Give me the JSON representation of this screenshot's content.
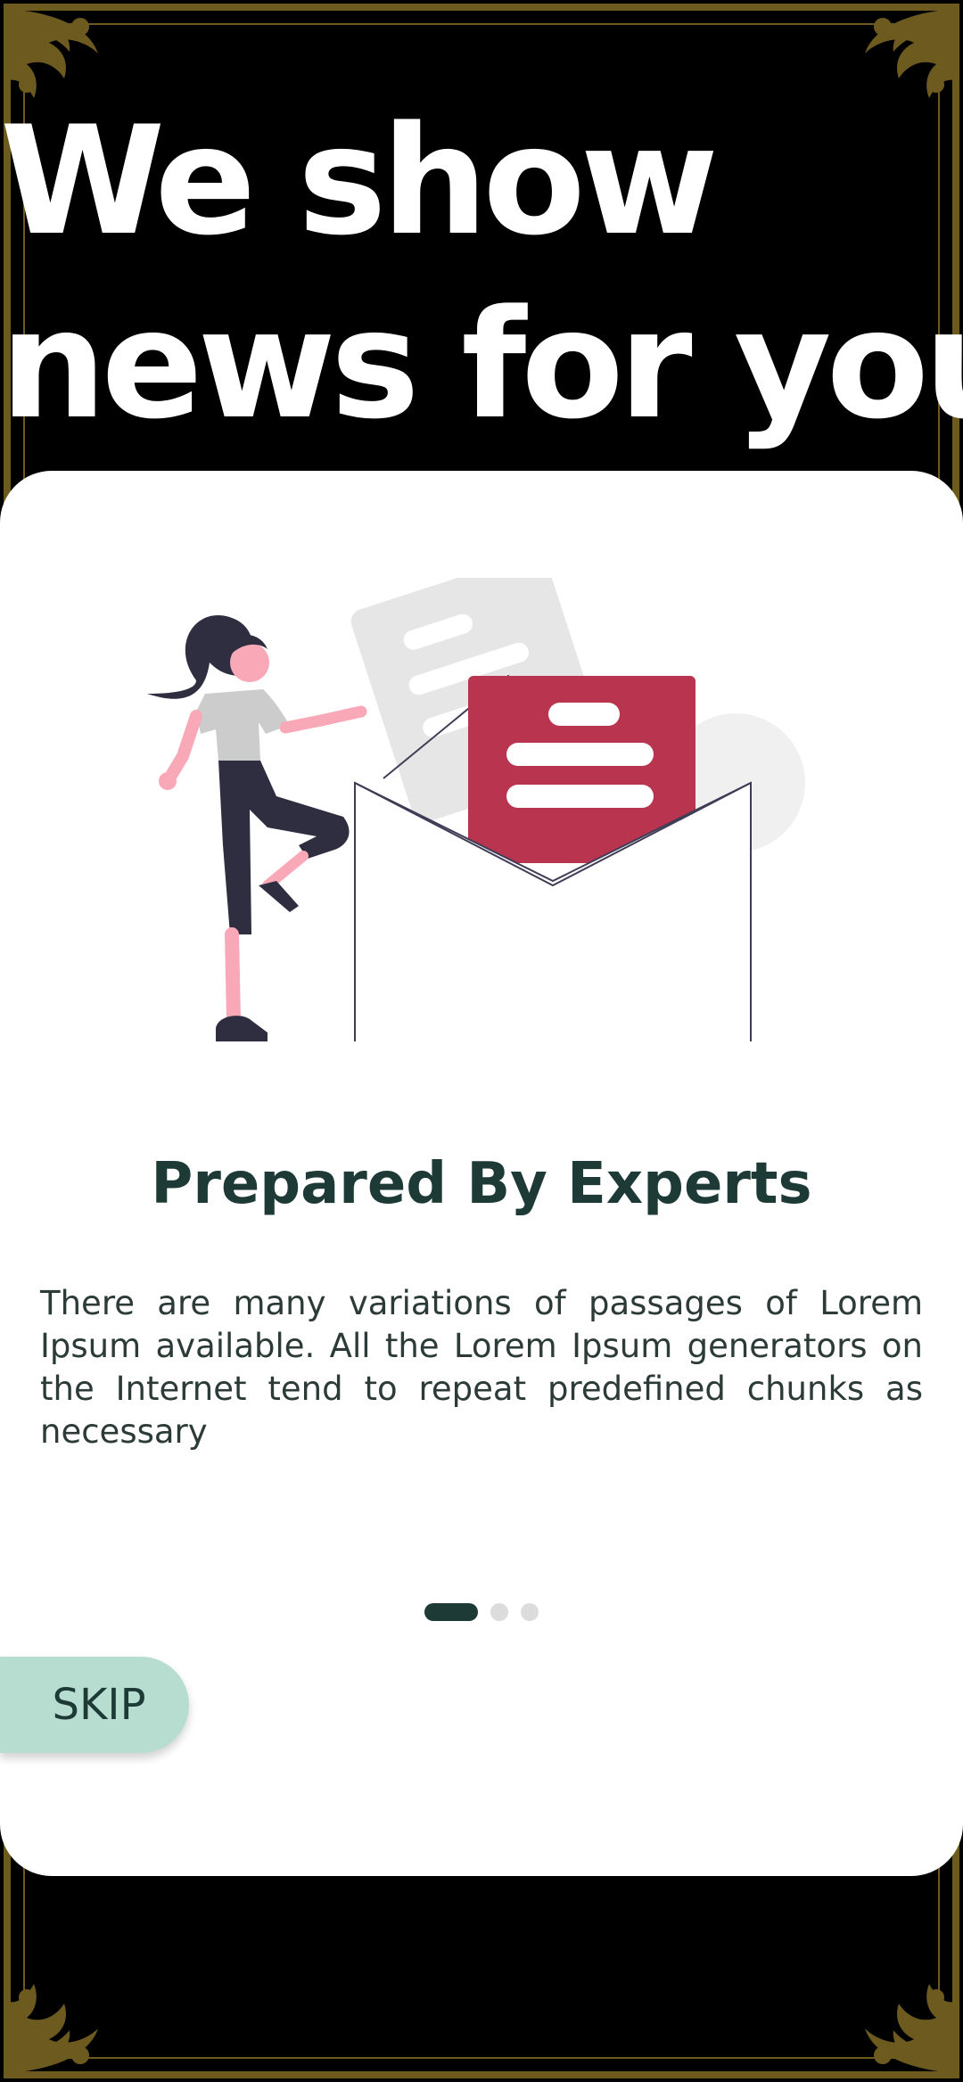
{
  "header": {
    "headline_line1": "We show",
    "headline_line2": "news for you"
  },
  "onboarding": {
    "illustration": "woman-with-open-envelope-illustration",
    "title": "Prepared By Experts",
    "description": "There are many variations of passages of Lorem Ipsum available. All the Lorem Ipsum generators on the Internet tend to repeat predefined chunks as necessary",
    "page_indicator": {
      "total": 3,
      "current": 1
    },
    "skip_label": "SKIP"
  },
  "colors": {
    "background": "#000000",
    "frame_gold": "#6d5a1e",
    "card": "#ffffff",
    "title_text": "#1e3a36",
    "skip_button": "#b6ddd0",
    "envelope_letter": "#b9344e",
    "dot_active": "#1e3a36",
    "dot_inactive": "#dcdcdc"
  }
}
